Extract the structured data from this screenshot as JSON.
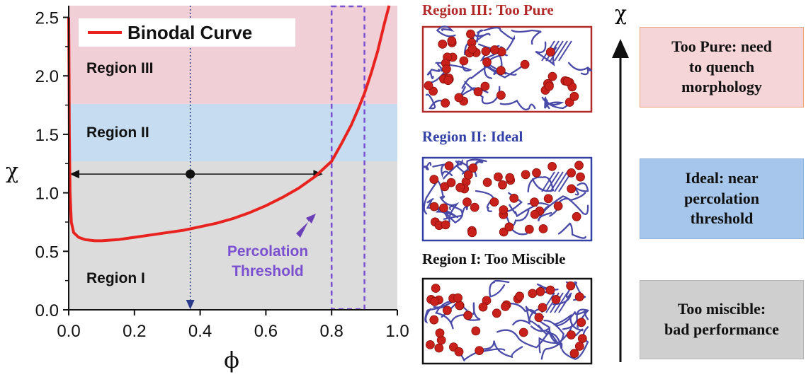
{
  "chart_data": {
    "type": "line",
    "xlabel": "ϕ",
    "ylabel": "χ",
    "xlim": [
      0.0,
      1.0
    ],
    "ylim": [
      0.0,
      2.6
    ],
    "x_ticks": [
      "0.0",
      "0.2",
      "0.4",
      "0.6",
      "0.8",
      "1.0"
    ],
    "y_ticks": [
      "0.0",
      "0.5",
      "1.0",
      "1.5",
      "2.0",
      "2.5"
    ],
    "legend": {
      "label": "Binodal Curve",
      "placement": "top-left"
    },
    "regions": [
      {
        "label": "Region I",
        "y_range": [
          0.0,
          1.27
        ],
        "color": "#dcdcdc"
      },
      {
        "label": "Region II",
        "y_range": [
          1.27,
          1.76
        ],
        "color": "#c6dcf0"
      },
      {
        "label": "Region III",
        "y_range": [
          1.76,
          2.6
        ],
        "color": "#f0cfd6"
      }
    ],
    "series": [
      {
        "name": "Binodal Curve",
        "color": "#e8231f",
        "x": [
          0.0,
          0.001,
          0.002,
          0.004,
          0.008,
          0.015,
          0.03,
          0.05,
          0.08,
          0.1,
          0.15,
          0.2,
          0.25,
          0.3,
          0.35,
          0.4,
          0.45,
          0.5,
          0.55,
          0.6,
          0.65,
          0.7,
          0.75,
          0.8,
          0.83,
          0.86,
          0.88,
          0.9,
          0.92,
          0.94,
          0.96,
          0.975
        ],
        "y": [
          2.5,
          2.0,
          1.5,
          1.0,
          0.75,
          0.66,
          0.62,
          0.6,
          0.59,
          0.59,
          0.6,
          0.62,
          0.64,
          0.66,
          0.68,
          0.71,
          0.74,
          0.78,
          0.83,
          0.89,
          0.96,
          1.04,
          1.14,
          1.27,
          1.42,
          1.58,
          1.71,
          1.85,
          2.02,
          2.21,
          2.44,
          2.6
        ]
      }
    ],
    "point": {
      "x": 0.37,
      "y": 1.16
    },
    "tie_line": {
      "x_start": 0.0,
      "x_end": 0.77,
      "y": 1.16
    },
    "drop_line": {
      "x": 0.37,
      "y_from": 2.6,
      "y_to": 0.0
    },
    "percolation_band": {
      "x_range": [
        0.8,
        0.9
      ],
      "color": "#7a4fd0"
    },
    "annotation": {
      "text_lines": [
        "Percolation",
        "Threshold"
      ],
      "color": "#7a4fd0"
    }
  },
  "morphology_panels": [
    {
      "title": "Region III: Too Pure",
      "color": "#b22a2a"
    },
    {
      "title": "Region II: Ideal",
      "color": "#3340a6"
    },
    {
      "title": "Region I: Too Miscible",
      "color": "#111111"
    }
  ],
  "chi_axis": {
    "label": "χ"
  },
  "status_boxes": [
    {
      "text": "Too Pure: need\nto quench\nmorphology",
      "fill": "#f6d5d8",
      "border": "#e8a47a"
    },
    {
      "text": "Ideal: near\npercolation\nthreshold",
      "fill": "#a6c7eb",
      "border": "#8fb3db"
    },
    {
      "text": "Too miscible:\nbad performance",
      "fill": "#cfcfcf",
      "border": "#b5b5b5"
    }
  ]
}
